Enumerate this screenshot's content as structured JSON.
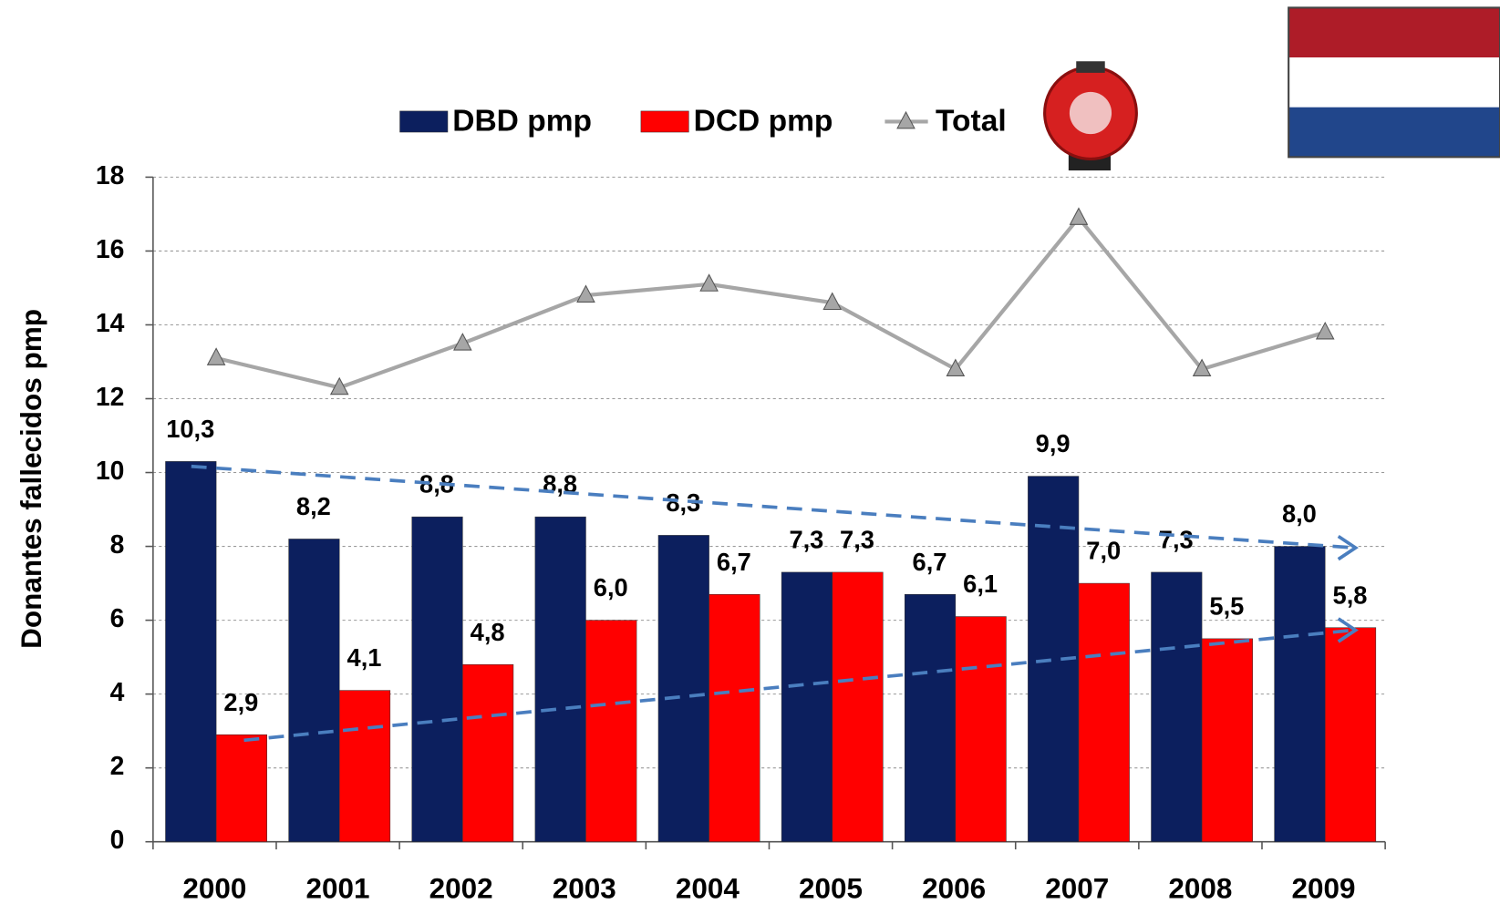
{
  "chart_data": {
    "type": "bar",
    "y_label": "Donantes fallecidos pmp",
    "categories": [
      "2000",
      "2001",
      "2002",
      "2003",
      "2004",
      "2005",
      "2006",
      "2007",
      "2008",
      "2009"
    ],
    "series": [
      {
        "name": "DBD pmp",
        "type": "bar",
        "color": "#0c1f5e",
        "values": [
          10.3,
          8.2,
          8.8,
          8.8,
          8.3,
          7.3,
          6.7,
          9.9,
          7.3,
          8.0
        ],
        "value_labels": [
          "10,3",
          "8,2",
          "8,8",
          "8,8",
          "8,3",
          "7,3",
          "6,7",
          "9,9",
          "7,3",
          "8,0"
        ]
      },
      {
        "name": "DCD pmp",
        "type": "bar",
        "color": "#ff0000",
        "values": [
          2.9,
          4.1,
          4.8,
          6.0,
          6.7,
          7.3,
          6.1,
          7.0,
          5.5,
          5.8
        ],
        "value_labels": [
          "2,9",
          "4,1",
          "4,8",
          "6,0",
          "6,7",
          "7,3",
          "6,1",
          "7,0",
          "5,5",
          "5,8"
        ]
      },
      {
        "name": "Total",
        "type": "line",
        "color": "#a6a6a6",
        "values": [
          13.1,
          12.3,
          13.5,
          14.8,
          15.1,
          14.6,
          12.8,
          16.9,
          12.8,
          13.8
        ]
      }
    ],
    "ylim": [
      0,
      18
    ],
    "yticks": [
      0,
      2,
      4,
      6,
      8,
      10,
      12,
      14,
      16,
      18
    ],
    "grid": true
  }
}
